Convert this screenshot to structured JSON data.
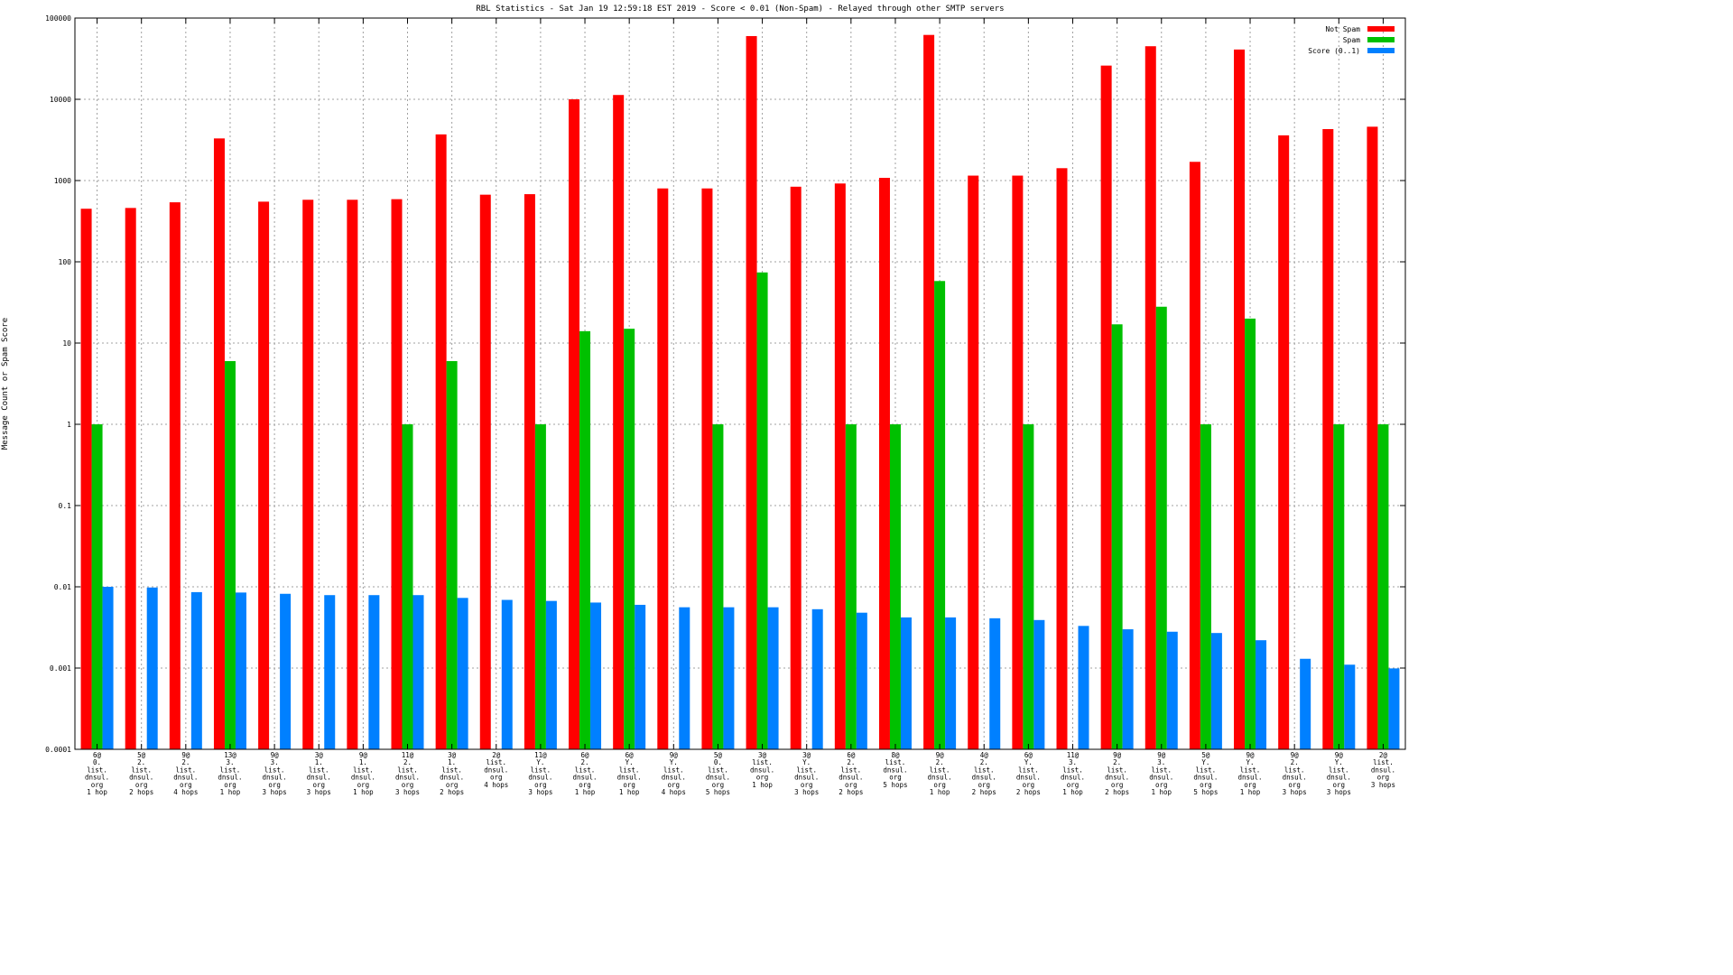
{
  "chart_data": {
    "type": "bar",
    "title": "RBL Statistics - Sat Jan 19 12:59:18 EST 2019 - Score < 0.01 (Non-Spam) - Relayed through other SMTP servers",
    "xlabel": "",
    "ylabel": "Message Count or Spam Score",
    "y_scale": "log",
    "ylim": [
      0.0001,
      100000
    ],
    "y_ticks": [
      "0.0001",
      "0.001",
      "0.01",
      "0.1",
      "1",
      "10",
      "100",
      "1000",
      "10000",
      "100000"
    ],
    "grid": true,
    "legend_position": "top-right",
    "categories": [
      [
        "6@",
        "0.",
        "list.",
        "dnsul.",
        "org",
        "1 hop"
      ],
      [
        "5@",
        "2.",
        "list.",
        "dnsul.",
        "org",
        "2 hops"
      ],
      [
        "9@",
        "2.",
        "list.",
        "dnsul.",
        "org",
        "4 hops"
      ],
      [
        "13@",
        "3.",
        "list.",
        "dnsul.",
        "org",
        "1 hop"
      ],
      [
        "9@",
        "3.",
        "list.",
        "dnsul.",
        "org",
        "3 hops"
      ],
      [
        "3@",
        "1.",
        "list.",
        "dnsul.",
        "org",
        "3 hops"
      ],
      [
        "9@",
        "1.",
        "list.",
        "dnsul.",
        "org",
        "1 hop"
      ],
      [
        "11@",
        "2.",
        "list.",
        "dnsul.",
        "org",
        "3 hops"
      ],
      [
        "3@",
        "1.",
        "list.",
        "dnsul.",
        "org",
        "2 hops"
      ],
      [
        "2@",
        "list.",
        "dnsul.",
        "org",
        "4 hops"
      ],
      [
        "11@",
        "Y.",
        "list.",
        "dnsul.",
        "org",
        "3 hops"
      ],
      [
        "6@",
        "2.",
        "list.",
        "dnsul.",
        "org",
        "1 hop"
      ],
      [
        "6@",
        "Y.",
        "list.",
        "dnsul.",
        "org",
        "1 hop"
      ],
      [
        "9@",
        "Y.",
        "list.",
        "dnsul.",
        "org",
        "4 hops"
      ],
      [
        "5@",
        "0.",
        "list.",
        "dnsul.",
        "org",
        "5 hops"
      ],
      [
        "3@",
        "list.",
        "dnsul.",
        "org",
        "1 hop"
      ],
      [
        "3@",
        "Y.",
        "list.",
        "dnsul.",
        "org",
        "3 hops"
      ],
      [
        "6@",
        "2.",
        "list.",
        "dnsul.",
        "org",
        "2 hops"
      ],
      [
        "8@",
        "list.",
        "dnsul.",
        "org",
        "5 hops"
      ],
      [
        "9@",
        "2.",
        "list.",
        "dnsul.",
        "org",
        "1 hop"
      ],
      [
        "4@",
        "2.",
        "list.",
        "dnsul.",
        "org",
        "2 hops"
      ],
      [
        "6@",
        "Y.",
        "list.",
        "dnsul.",
        "org",
        "2 hops"
      ],
      [
        "11@",
        "3.",
        "list.",
        "dnsul.",
        "org",
        "1 hop"
      ],
      [
        "9@",
        "2.",
        "list.",
        "dnsul.",
        "org",
        "2 hops"
      ],
      [
        "9@",
        "3.",
        "list.",
        "dnsul.",
        "org",
        "1 hop"
      ],
      [
        "5@",
        "Y.",
        "list.",
        "dnsul.",
        "org",
        "5 hops"
      ],
      [
        "9@",
        "Y.",
        "list.",
        "dnsul.",
        "org",
        "1 hop"
      ],
      [
        "9@",
        "2.",
        "list.",
        "dnsul.",
        "org",
        "3 hops"
      ],
      [
        "9@",
        "Y.",
        "list.",
        "dnsul.",
        "org",
        "3 hops"
      ],
      [
        "2@",
        "list.",
        "dnsul.",
        "org",
        "3 hops"
      ]
    ],
    "series": [
      {
        "name": "Not Spam",
        "color": "#ff0000",
        "values": [
          450,
          460,
          540,
          3300,
          550,
          580,
          580,
          590,
          3700,
          670,
          680,
          10000,
          11300,
          800,
          800,
          60000,
          840,
          920,
          1080,
          62000,
          1150,
          1150,
          1420,
          26000,
          45000,
          1700,
          41000,
          3600,
          4300,
          4600
        ]
      },
      {
        "name": "Spam",
        "color": "#00c000",
        "values": [
          1,
          null,
          null,
          6,
          null,
          null,
          null,
          1,
          6,
          null,
          1,
          14,
          15,
          null,
          1,
          74,
          null,
          1,
          1,
          58,
          null,
          1,
          null,
          17,
          28,
          1,
          20,
          null,
          1,
          1
        ]
      },
      {
        "name": "Score (0..1)",
        "color": "#0080ff",
        "values": [
          0.01,
          0.0098,
          0.0086,
          0.0085,
          0.0082,
          0.0079,
          0.0079,
          0.0079,
          0.0073,
          0.0069,
          0.0067,
          0.0064,
          0.006,
          0.0056,
          0.0056,
          0.0056,
          0.0053,
          0.0048,
          0.0042,
          0.0042,
          0.0041,
          0.0039,
          0.0033,
          0.003,
          0.0028,
          0.0027,
          0.0022,
          0.0013,
          0.0011,
          0.00099
        ]
      }
    ]
  }
}
